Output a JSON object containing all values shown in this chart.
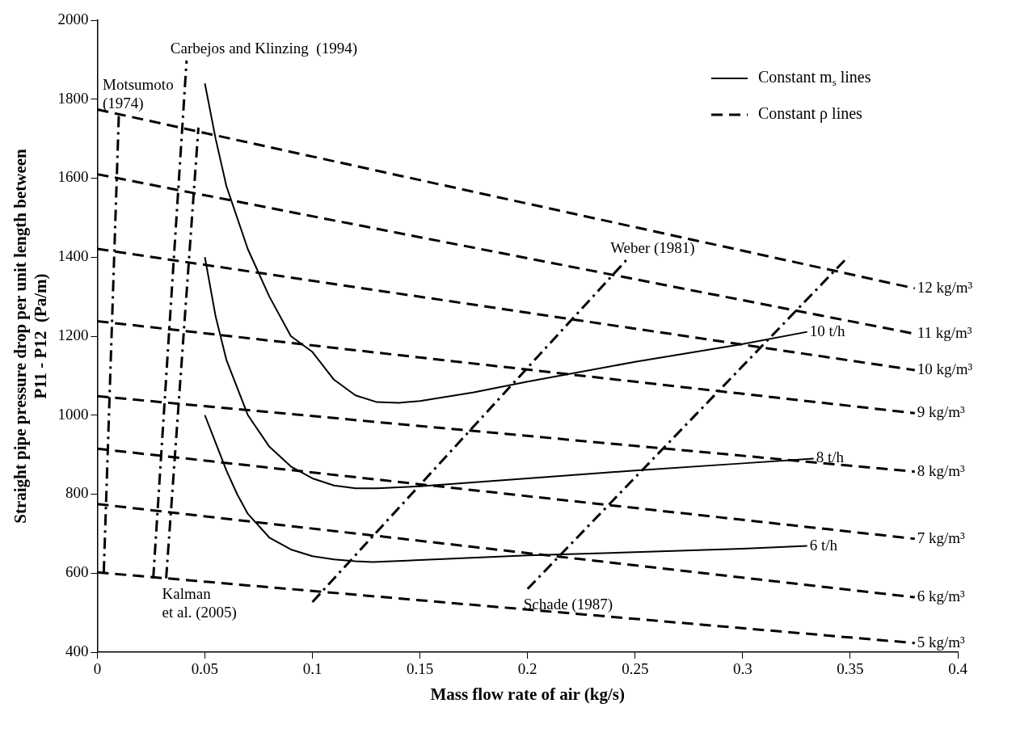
{
  "chart_data": {
    "type": "line",
    "xlabel": "Mass flow rate of air (kg/s)",
    "ylabel": "Straight pipe pressure drop per unit length between\nP11 - P12  (Pa/m)",
    "xlim": [
      0,
      0.4
    ],
    "xticks": [
      0,
      0.05,
      0.1,
      0.15,
      0.2,
      0.25,
      0.3,
      0.35,
      0.4
    ],
    "ylim": [
      400,
      2000
    ],
    "yticks": [
      400,
      600,
      800,
      1000,
      1200,
      1400,
      1600,
      1800,
      2000
    ],
    "grid": false,
    "legend": "top right",
    "marker": "none",
    "annotations": [
      {
        "text": "10 t/h",
        "x": 0.33,
        "y": 1211
      },
      {
        "text": "8 t/h",
        "x": 0.333,
        "y": 890
      },
      {
        "text": "6 t/h",
        "x": 0.33,
        "y": 669
      },
      {
        "text": "12 kg/m³",
        "x": 0.38,
        "y": 1321
      },
      {
        "text": "11 kg/m³",
        "x": 0.38,
        "y": 1206
      },
      {
        "text": "10 kg/m³",
        "x": 0.38,
        "y": 1114
      },
      {
        "text": "9 kg/m³",
        "x": 0.38,
        "y": 1005
      },
      {
        "text": "8 kg/m³",
        "x": 0.38,
        "y": 857
      },
      {
        "text": "7 kg/m³",
        "x": 0.38,
        "y": 687
      },
      {
        "text": "6 kg/m³",
        "x": 0.38,
        "y": 539
      },
      {
        "text": "5 kg/m³",
        "x": 0.38,
        "y": 423
      },
      {
        "text": "Motsumoto\n(1974)",
        "x": 0.01,
        "y": 1759
      },
      {
        "text": "Carbejos and Klinzing  (1994)",
        "x": 0.0415,
        "y": 1898
      },
      {
        "text": "Kalman\net al. (2005)",
        "x": 0.032,
        "y": 587
      },
      {
        "text": "Weber (1981)",
        "x": 0.246,
        "y": 1393
      },
      {
        "text": "Schade (1987)",
        "x": 0.2,
        "y": 560
      }
    ],
    "series": [
      {
        "name": "Constant m$_{s}$ lines",
        "color": "#000000",
        "line_style": "solid",
        "x": [
          0.05,
          0.055,
          0.06,
          0.07,
          0.08,
          0.09,
          0.1,
          0.11,
          0.12,
          0.13,
          0.14,
          0.15,
          0.175,
          0.2,
          0.25,
          0.3,
          0.33
        ],
        "values": [
          1840,
          1700,
          1580,
          1420,
          1300,
          1200,
          1160,
          1090,
          1050,
          1033,
          1031,
          1036,
          1058,
          1085,
          1135,
          1180,
          1211
        ]
      },
      {
        "color": "#000000",
        "line_style": "solid",
        "x": [
          0.05,
          0.055,
          0.06,
          0.07,
          0.08,
          0.09,
          0.1,
          0.11,
          0.12,
          0.13,
          0.15,
          0.2,
          0.25,
          0.3,
          0.333
        ],
        "values": [
          1400,
          1250,
          1140,
          1000,
          920,
          870,
          840,
          822,
          815,
          815,
          820,
          840,
          860,
          878,
          890
        ]
      },
      {
        "color": "#000000",
        "line_style": "solid",
        "x": [
          0.05,
          0.055,
          0.06,
          0.065,
          0.07,
          0.08,
          0.09,
          0.1,
          0.11,
          0.12,
          0.128,
          0.15,
          0.2,
          0.25,
          0.3,
          0.33
        ],
        "values": [
          1000,
          930,
          860,
          800,
          750,
          690,
          660,
          643,
          635,
          630,
          628,
          633,
          645,
          653,
          662,
          669
        ]
      },
      {
        "name": "Constant ρ lines",
        "color": "#000000",
        "line_style": "dashed",
        "x": [
          0,
          0.38
        ],
        "values": [
          1774,
          1321
        ]
      },
      {
        "color": "#000000",
        "line_style": "dashed",
        "x": [
          0,
          0.38
        ],
        "values": [
          1610,
          1206
        ]
      },
      {
        "color": "#000000",
        "line_style": "dashed",
        "x": [
          0,
          0.38
        ],
        "values": [
          1421,
          1114
        ]
      },
      {
        "color": "#000000",
        "line_style": "dashed",
        "x": [
          0,
          0.38
        ],
        "values": [
          1238,
          1005
        ]
      },
      {
        "color": "#000000",
        "line_style": "dashed",
        "x": [
          0,
          0.38
        ],
        "values": [
          1048,
          857
        ]
      },
      {
        "color": "#000000",
        "line_style": "dashed",
        "x": [
          0,
          0.38
        ],
        "values": [
          915,
          687
        ]
      },
      {
        "color": "#000000",
        "line_style": "dashed",
        "x": [
          0,
          0.38
        ],
        "values": [
          775,
          539
        ]
      },
      {
        "color": "#000000",
        "line_style": "dashed",
        "x": [
          0,
          0.38
        ],
        "values": [
          602,
          423
        ]
      },
      {
        "color": "#000000",
        "line_style": "dashdot",
        "x": [
          0.003,
          0.01
        ],
        "values": [
          602,
          1759
        ]
      },
      {
        "color": "#000000",
        "line_style": "dashdot",
        "x": [
          0.026,
          0.0415
        ],
        "values": [
          587,
          1898
        ]
      },
      {
        "color": "#000000",
        "line_style": "dashdot",
        "x": [
          0.032,
          0.047
        ],
        "values": [
          587,
          1728
        ]
      },
      {
        "color": "#000000",
        "line_style": "dashdot",
        "x": [
          0.1,
          0.246
        ],
        "values": [
          527,
          1393
        ]
      },
      {
        "color": "#000000",
        "line_style": "dashdot",
        "x": [
          0.2,
          0.349
        ],
        "values": [
          560,
          1401
        ]
      }
    ]
  }
}
